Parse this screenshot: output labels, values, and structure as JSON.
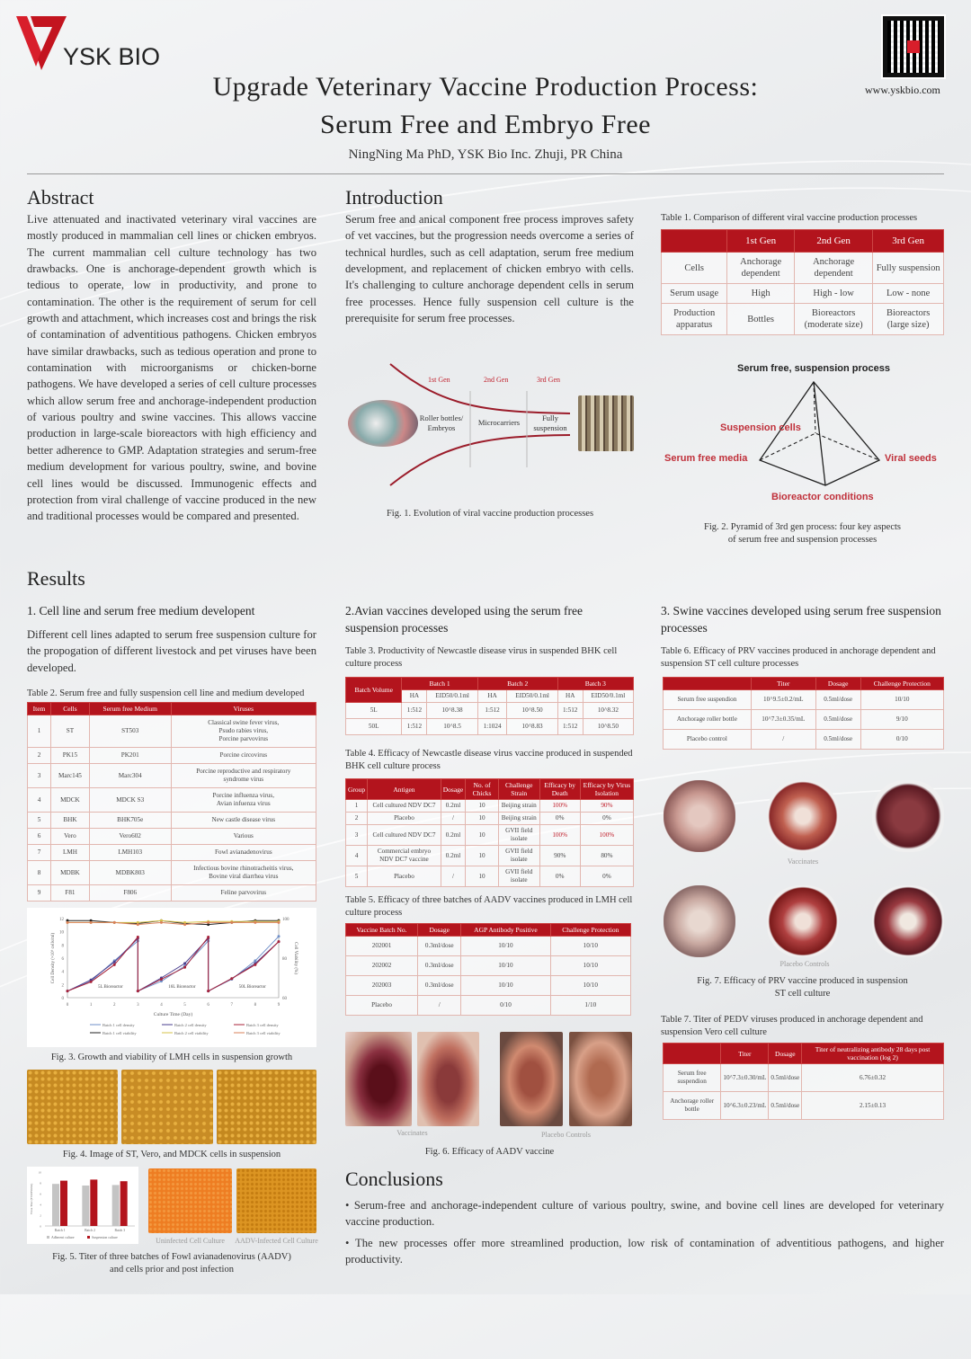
{
  "header": {
    "logo_text": "YSK BIO",
    "title_line1": "Upgrade Veterinary Vaccine Production Process:",
    "title_line2": "Serum Free and Embryo Free",
    "author": "NingNing Ma PhD, YSK Bio Inc. Zhuji, PR China",
    "website": "www.yskbio.com"
  },
  "colors": {
    "accent": "#b3141d",
    "logo": "#d81e2b",
    "background": "#eceef0"
  },
  "abstract": {
    "heading": "Abstract",
    "text": "Live attenuated and inactivated veterinary viral vaccines are mostly produced in mammalian cell lines or chicken embryos. The current mammalian cell culture technology has two drawbacks. One is anchorage-dependent growth which is tedious to operate, low in productivity, and prone to contamination. The other is the requirement of serum for cell growth and attachment, which increases cost and brings the risk of contamination of adventitious pathogens. Chicken embryos have similar drawbacks, such as tedious operation and prone to contamination with microorganisms or chicken-borne pathogens. We have developed a series of cell culture processes which allow serum free and anchorage-independent production of various poultry and swine vaccines. This allows vaccine production in large-scale bioreactors with high efficiency and better adherence to GMP. Adaptation strategies and serum-free medium development for various poultry, swine, and bovine cell lines would be discussed. Immunogenic effects and protection from viral challenge of vaccine produced in the new and traditional processes would be compared and presented."
  },
  "introduction": {
    "heading": "Introduction",
    "text": "Serum free and anical component free process improves safety of vet vaccines, but the progression needs overcome a series of technical hurdles, such as cell adaptation, serum free medium development, and replacement of chicken embryo with cells. It's challenging to culture anchorage dependent cells in serum free processes. Hence fully suspension cell culture is the prerequisite for serum free processes."
  },
  "fig1": {
    "gens": [
      "1st Gen",
      "2nd Gen",
      "3rd Gen"
    ],
    "stages": [
      "Roller bottles/ Embryos",
      "Microcarriers",
      "Fully suspension"
    ],
    "caption": "Fig. 1. Evolution of  viral vaccine production processes"
  },
  "table1": {
    "caption": "Table 1. Comparison of different viral vaccine production processes",
    "headers": [
      "",
      "1st Gen",
      "2nd Gen",
      "3rd Gen"
    ],
    "rows": [
      [
        "Cells",
        "Anchorage dependent",
        "Anchorage dependent",
        "Fully suspension"
      ],
      [
        "Serum usage",
        "High",
        "High - low",
        "Low - none"
      ],
      [
        "Production apparatus",
        "Bottles",
        "Bioreactors (moderate size)",
        "Bioreactors (large size)"
      ]
    ]
  },
  "fig2": {
    "top": "Serum free, suspension process",
    "left": "Serum free media",
    "back": "Suspension cells",
    "right": "Viral seeds",
    "bottom": "Bioreactor conditions",
    "caption_line1": "Fig. 2. Pyramid of 3rd gen process: four key aspects",
    "caption_line2": "of serum free and suspension processes"
  },
  "results": {
    "heading": "Results"
  },
  "section1": {
    "heading": "1. Cell line and serum free medium developent",
    "text": "Different cell lines adapted to serum free suspension culture for the propogation of different livestock and pet viruses have been developed."
  },
  "table2": {
    "caption": "Table 2. Serum free and fully suspension cell line and medium developed",
    "headers": [
      "Item",
      "Cells",
      "Serum free Medium",
      "Viruses"
    ],
    "rows": [
      [
        "1",
        "ST",
        "ST503",
        "Classical swine fever virus,\nPsudo rabies virus,\nPorcine parvovirus"
      ],
      [
        "2",
        "PK15",
        "PK201",
        "Porcine circovirus"
      ],
      [
        "3",
        "Marc145",
        "Marc304",
        "Porcine reproductive and respiratory\nsyndrome virus"
      ],
      [
        "4",
        "MDCK",
        "MDCK S3",
        "Porcine influenza virus,\nAvian infuenza virus"
      ],
      [
        "5",
        "BHK",
        "BHK705e",
        "New castle disease virus"
      ],
      [
        "6",
        "Vero",
        "Vero602",
        "Various"
      ],
      [
        "7",
        "LMH",
        "LMH103",
        "Fowl avianadenovirus"
      ],
      [
        "8",
        "MDBK",
        "MDBK803",
        "Infectious bovine rhinotracheitis virus,\nBovine viral diarrhea virus"
      ],
      [
        "9",
        "F81",
        "F806",
        "Feline parvovirus"
      ]
    ]
  },
  "chart_data": [
    {
      "type": "line",
      "xlabel": "Culture Time (Day)",
      "ylabel": "Cell Density (×10⁶ cells/ml)",
      "y2label": "Cell Viability (%)",
      "xlim": [
        0,
        9
      ],
      "ylim": [
        0,
        12
      ],
      "y2lim": [
        60,
        100
      ],
      "xticks": [
        0,
        1,
        2,
        3,
        4,
        5,
        6,
        7,
        8,
        9
      ],
      "yticks": [
        0,
        2,
        4,
        6,
        8,
        10,
        12
      ],
      "y2ticks": [
        60,
        80,
        100
      ],
      "annotations": [
        "5L Bioreactor",
        "16L Bioreactor",
        "50L Bioreactor"
      ],
      "legend": "bottom",
      "density_x": [
        0,
        1,
        2,
        3,
        3,
        4,
        5,
        6,
        6,
        7,
        8,
        9
      ],
      "viability_x": [
        0,
        1,
        2,
        3,
        4,
        5,
        6,
        7,
        8,
        9
      ],
      "series": [
        {
          "name": "Batch 1 cell density",
          "axis": "left",
          "color": "#6f8fc8",
          "values": [
            1,
            2.5,
            5.6,
            8.6,
            1,
            2.5,
            4.8,
            8.6,
            1,
            2.8,
            5.6,
            9.3
          ]
        },
        {
          "name": "Batch 2 cell density",
          "axis": "left",
          "color": "#4a3f8f",
          "values": [
            1,
            2.7,
            5.4,
            9.0,
            1,
            3.0,
            5.2,
            9.0,
            1,
            2.9,
            5.2,
            8.5
          ]
        },
        {
          "name": "Batch 3 cell density",
          "axis": "left",
          "color": "#a8233a",
          "values": [
            1,
            2.4,
            5.0,
            9.2,
            1,
            2.8,
            4.6,
            9.2,
            1,
            2.9,
            5.0,
            8.5
          ]
        },
        {
          "name": "Batch 1 cell viability",
          "axis": "right",
          "color": "#222222",
          "values": [
            99,
            99,
            98,
            97.5,
            99,
            97.5,
            97,
            98,
            99,
            99
          ]
        },
        {
          "name": "Batch 2 cell viability",
          "axis": "right",
          "color": "#d6c34a",
          "values": [
            98,
            98,
            98,
            98,
            99,
            98,
            98.5,
            98.5,
            98.5,
            98.5
          ]
        },
        {
          "name": "Batch 3 cell viability",
          "axis": "right",
          "color": "#d9815a",
          "values": [
            98,
            98,
            98,
            97,
            98,
            97,
            98,
            98,
            98,
            98
          ]
        }
      ]
    },
    {
      "type": "bar",
      "categories": [
        "Batch 1",
        "Batch 2",
        "Batch 3"
      ],
      "ylabel": "Virus Titer (TCID50/ml)",
      "ylim": [
        0,
        10
      ],
      "yticks": [
        0,
        2,
        4,
        6,
        8,
        10
      ],
      "legend": "bottom",
      "series": [
        {
          "name": "Adherent culture",
          "color": "#c4c4c4",
          "values": [
            7.8,
            7.5,
            7.6
          ]
        },
        {
          "name": "Suspension culture",
          "color": "#b3141d",
          "values": [
            8.4,
            8.6,
            8.3
          ]
        }
      ]
    }
  ],
  "fig3": {
    "caption": "Fig. 3. Growth and viability of LMH cells in suspension growth"
  },
  "fig4": {
    "caption": "Fig. 4. Image of ST, Vero, and MDCK cells in suspension"
  },
  "fig5": {
    "label_uninfected": "Uninfected Cell Culture",
    "label_infected": "AADV-Infected Cell Culture",
    "caption_line1": "Fig. 5. Titer of three batches of Fowl avianadenovirus (AADV)",
    "caption_line2": "and cells prior and post infection"
  },
  "section2": {
    "heading": "2.Avian vaccines developed using the serum free suspension processes"
  },
  "table3": {
    "caption": "Table 3. Productivity of Newcastle disease virus in suspended BHK cell culture process",
    "batch_volume": "Batch Volume",
    "batches": [
      "Batch 1",
      "Batch 2",
      "Batch 3"
    ],
    "sub": [
      "HA",
      "EID50/0.1ml"
    ],
    "rows": [
      [
        "5L",
        "1:512",
        "10^8.38",
        "1:512",
        "10^8.50",
        "1:512",
        "10^8.32"
      ],
      [
        "50L",
        "1:512",
        "10^8.5",
        "1:1024",
        "10^8.83",
        "1:512",
        "10^8.50"
      ]
    ]
  },
  "table4": {
    "caption": "Table 4. Efficacy of Newcastle disease virus vaccine produced in suspended BHK cell culture process",
    "headers": [
      "Group",
      "Antigen",
      "Dosage",
      "No. of Chicks",
      "Challenge Strain",
      "Efficacy by Death",
      "Efficacy by Virus Isolation"
    ],
    "rows": [
      [
        "1",
        "Cell cultured NDV DC7",
        "0.2ml",
        "10",
        "Beijing strain",
        "100%",
        "90%"
      ],
      [
        "2",
        "Placebo",
        "/",
        "10",
        "Beijing strain",
        "0%",
        "0%"
      ],
      [
        "3",
        "Cell cultured NDV DC7",
        "0.2ml",
        "10",
        "GVII field isolate",
        "100%",
        "100%"
      ],
      [
        "4",
        "Commercial embryo NDV DC7 vaccine",
        "0.2ml",
        "10",
        "GVII field isolate",
        "90%",
        "80%"
      ],
      [
        "5",
        "Placebo",
        "/",
        "10",
        "GVII field isolate",
        "0%",
        "0%"
      ]
    ]
  },
  "table5": {
    "caption": "Table 5. Efficacy of three batches of AADV vaccines produced in LMH cell culture process",
    "headers": [
      "Vaccine Batch No.",
      "Dosage",
      "AGP Antibody Positive",
      "Challenge Protection"
    ],
    "rows": [
      [
        "202001",
        "0.3ml/dose",
        "10/10",
        "10/10"
      ],
      [
        "202002",
        "0.3ml/dose",
        "10/10",
        "10/10"
      ],
      [
        "202003",
        "0.3ml/dose",
        "10/10",
        "10/10"
      ],
      [
        "Placebo",
        "/",
        "0/10",
        "1/10"
      ]
    ]
  },
  "fig6": {
    "label_vaccinates": "Vaccinates",
    "label_placebo": "Placebo Controls",
    "caption": "Fig. 6. Efficacy of AADV vaccine"
  },
  "section3": {
    "heading": "3. Swine vaccines developed using serum free suspension processes"
  },
  "table6": {
    "caption": "Table 6. Efficacy of PRV vaccines produced in anchorage dependent and suspension ST cell culture processes",
    "headers": [
      "",
      "Titer",
      "Dosage",
      "Challenge Protection"
    ],
    "rows": [
      [
        "Serum free suspendion",
        "10^9.5±0.2/mL",
        "0.5ml/dose",
        "10/10"
      ],
      [
        "Anchorage roller bottle",
        "10^7.3±0.35/mL",
        "0.5ml/dose",
        "9/10"
      ],
      [
        "Placebo control",
        "/",
        "0.5ml/dose",
        "0/10"
      ]
    ]
  },
  "fig7": {
    "label_vaccinates": "Vaccinates",
    "label_placebo": "Placebo Controls",
    "caption_line1": "Fig. 7. Efficacy of PRV vaccine produced in suspension",
    "caption_line2": "ST cell culture"
  },
  "table7": {
    "caption": "Table 7. Titer of PEDV viruses produced in anchorage dependent and suspension Vero cell culture",
    "headers": [
      "",
      "Titer",
      "Dosage",
      "Titer of neutralizing antibody 28 days post vaccination (log 2)"
    ],
    "rows": [
      [
        "Serum free suspendion",
        "10^7.3±0.30/mL",
        "0.5ml/dose",
        "6.76±0.32"
      ],
      [
        "Anchorage roller bottle",
        "10^6.3±0.23/mL",
        "0.5ml/dose",
        "2.15±0.13"
      ]
    ]
  },
  "conclusions": {
    "heading": "Conclusions",
    "bullets": [
      "• Serum-free and anchorage-independent culture of various poultry, swine, and bovine cell lines are developed for veterinary vaccine production.",
      "• The new processes offer more streamlined production, low risk of contamination of adventitious pathogens, and higher productivity."
    ]
  }
}
